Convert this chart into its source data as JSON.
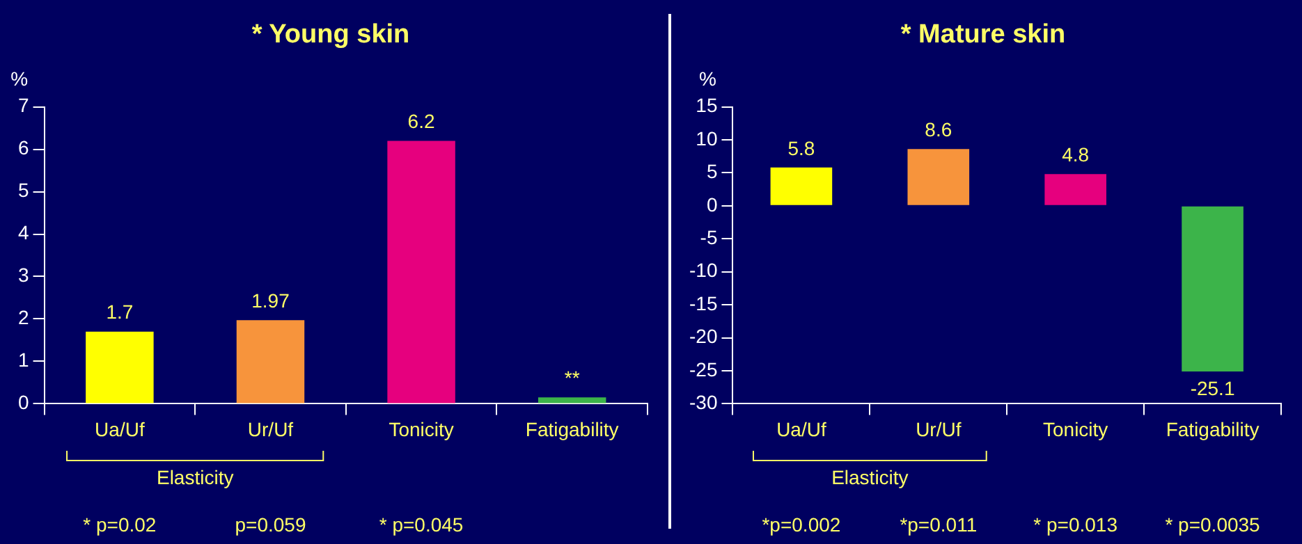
{
  "chart_data": [
    {
      "type": "bar",
      "title": "* Young skin",
      "ylabel": "%",
      "categories": [
        "Ua/Uf",
        "Ur/Uf",
        "Tonicity",
        "Fatigability"
      ],
      "values": [
        1.7,
        1.97,
        6.2,
        0.15
      ],
      "colors": [
        "#ffff00",
        "#f7943c",
        "#e6007e",
        "#3cb44a"
      ],
      "value_labels": [
        "1.7",
        "1.97",
        "6.2",
        "**"
      ],
      "ylim": [
        0,
        7
      ],
      "yticks": [
        0,
        1,
        2,
        3,
        4,
        5,
        6,
        7
      ],
      "annotations": [
        "Elasticity",
        "* p=0.02",
        "p=0.059",
        "* p=0.045"
      ]
    },
    {
      "type": "bar",
      "title": "* Mature skin",
      "ylabel": "%",
      "categories": [
        "Ua/Uf",
        "Ur/Uf",
        "Tonicity",
        "Fatigability"
      ],
      "values": [
        5.8,
        8.6,
        4.8,
        -25.1
      ],
      "colors": [
        "#ffff00",
        "#f7943c",
        "#e6007e",
        "#3cb44a"
      ],
      "data_labels": true,
      "ylim": [
        -30,
        15
      ],
      "yticks": [
        -30,
        -25,
        -20,
        -15,
        -10,
        -5,
        0,
        5,
        10,
        15
      ],
      "annotations": [
        "Elasticity",
        "*p=0.002",
        "*p=0.011",
        "* p=0.013",
        "* p=0.0035"
      ]
    }
  ]
}
